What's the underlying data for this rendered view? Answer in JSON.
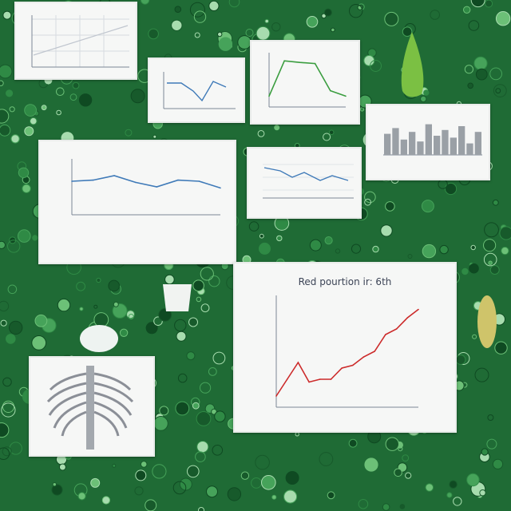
{
  "scene": {
    "description_colors": {
      "background": "#1f6b35",
      "card": "#f6f7f6",
      "line_blue": "#3f7ab8",
      "line_green": "#3a9d3f",
      "line_red": "#cc2a2a",
      "bar_gray": "#9aa0a6"
    },
    "main_chart": {
      "title": "Red pourtion ir: 6th"
    }
  },
  "chart_data": [
    {
      "type": "line",
      "title": "Red pourtion ir: 6th",
      "x": [
        1,
        2,
        3,
        4,
        5,
        6,
        7,
        8,
        9,
        10,
        11,
        12,
        13,
        14
      ],
      "values": [
        2,
        5,
        8,
        4.5,
        5,
        5,
        7,
        7.5,
        9,
        10,
        13,
        14,
        16,
        17.5
      ],
      "ylim": [
        0,
        20
      ],
      "series_color": "#cc2a2a"
    },
    {
      "type": "line",
      "title": "",
      "x": [
        1,
        2,
        3,
        4,
        5,
        6,
        7,
        8
      ],
      "values": [
        60,
        62,
        70,
        58,
        50,
        62,
        60,
        48
      ],
      "ylim": [
        0,
        100
      ],
      "series_color": "#3f7ab8"
    },
    {
      "type": "line",
      "title": "",
      "x": [
        1,
        2,
        3,
        4,
        5,
        6
      ],
      "values": [
        20,
        85,
        82,
        80,
        30,
        20
      ],
      "ylim": [
        0,
        100
      ],
      "series_color": "#3a9d3f"
    },
    {
      "type": "bar",
      "title": "",
      "values": [
        55,
        70,
        40,
        60,
        35,
        80,
        50,
        65,
        45,
        75,
        30,
        60
      ],
      "ylim": [
        0,
        100
      ],
      "series_color": "#9aa0a6"
    }
  ]
}
